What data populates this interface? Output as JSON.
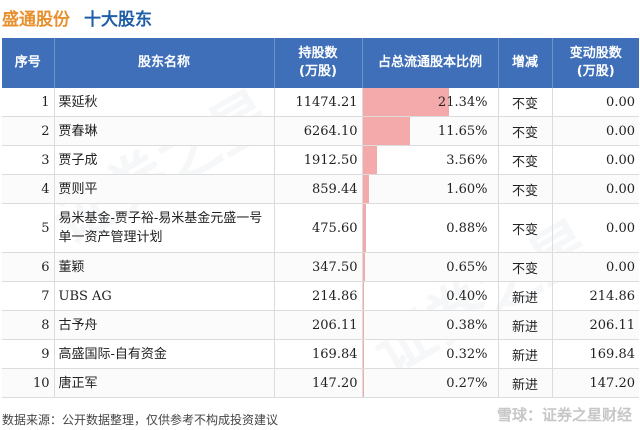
{
  "header": {
    "company": "盛通股份",
    "section": "十大股东"
  },
  "table": {
    "columns": [
      "序号",
      "股东名称",
      "持股数\n(万股)",
      "占总流通股本比例",
      "增减",
      "变动股数\n(万股)"
    ],
    "rows": [
      {
        "idx": "1",
        "name": "栗延秋",
        "shares": "11474.21",
        "ratio": "21.34%",
        "ratio_value": 21.34,
        "change": "不变",
        "delta": "0.00"
      },
      {
        "idx": "2",
        "name": "贾春琳",
        "shares": "6264.10",
        "ratio": "11.65%",
        "ratio_value": 11.65,
        "change": "不变",
        "delta": "0.00"
      },
      {
        "idx": "3",
        "name": "贾子成",
        "shares": "1912.50",
        "ratio": "3.56%",
        "ratio_value": 3.56,
        "change": "不变",
        "delta": "0.00"
      },
      {
        "idx": "4",
        "name": "贾则平",
        "shares": "859.44",
        "ratio": "1.60%",
        "ratio_value": 1.6,
        "change": "不变",
        "delta": "0.00"
      },
      {
        "idx": "5",
        "name": "易米基金-贾子裕-易米基金元盛一号单一资产管理计划",
        "shares": "475.60",
        "ratio": "0.88%",
        "ratio_value": 0.88,
        "change": "不变",
        "delta": "0.00"
      },
      {
        "idx": "6",
        "name": "董颖",
        "shares": "347.50",
        "ratio": "0.65%",
        "ratio_value": 0.65,
        "change": "不变",
        "delta": "0.00"
      },
      {
        "idx": "7",
        "name": "UBS AG",
        "shares": "214.86",
        "ratio": "0.40%",
        "ratio_value": 0.4,
        "change": "新进",
        "delta": "214.86"
      },
      {
        "idx": "8",
        "name": "古予舟",
        "shares": "206.11",
        "ratio": "0.38%",
        "ratio_value": 0.38,
        "change": "新进",
        "delta": "206.11"
      },
      {
        "idx": "9",
        "name": "高盛国际-自有资金",
        "shares": "169.84",
        "ratio": "0.32%",
        "ratio_value": 0.32,
        "change": "新进",
        "delta": "169.84"
      },
      {
        "idx": "10",
        "name": "唐正军",
        "shares": "147.20",
        "ratio": "0.27%",
        "ratio_value": 0.27,
        "change": "新进",
        "delta": "147.20"
      }
    ]
  },
  "footer": {
    "source": "数据来源：公开数据整理，仅供参考不构成投资建议",
    "brand": "雪球：证券之星财经"
  },
  "watermark": "证券之星",
  "colors": {
    "header_bg": "#3e6fb8",
    "company_title": "#e8902e",
    "section_title": "#1f5fa8",
    "ratio_bar": "#f4a9ab",
    "new_entry": "#d9252b"
  }
}
